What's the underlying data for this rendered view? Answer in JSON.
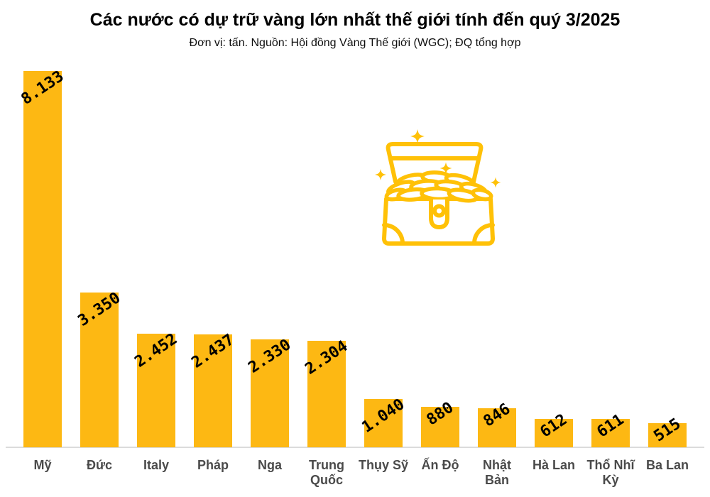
{
  "chart_data": {
    "type": "bar",
    "title": "Các nước có dự trữ vàng lớn nhất thế giới tính đến quý 3/2025",
    "subtitle": "Đơn vị: tấn. Nguồn: Hội đồng Vàng Thế giới (WGC); ĐQ tổng hợp",
    "unit": "tấn",
    "categories": [
      "Mỹ",
      "Đức",
      "Italy",
      "Pháp",
      "Nga",
      "Trung Quốc",
      "Thụy Sỹ",
      "Ấn Độ",
      "Nhật Bản",
      "Hà Lan",
      "Thổ Nhĩ Kỳ",
      "Ba Lan"
    ],
    "values": [
      8133,
      3350,
      2452,
      2437,
      2330,
      2304,
      1040,
      880,
      846,
      612,
      611,
      515
    ],
    "value_labels": [
      "8.133",
      "3.350",
      "2.452",
      "2.437",
      "2.330",
      "2.304",
      "1.040",
      "880",
      "846",
      "612",
      "611",
      "515"
    ],
    "ylim": [
      0,
      8133
    ],
    "grid": false,
    "legend": false,
    "bar_color": "#FDB813",
    "label_rotation_deg": -34
  },
  "icon": {
    "name": "treasure-chest-icon",
    "description": "open treasure chest full of gold coins with sparkles",
    "color": "#FFC107"
  },
  "colors": {
    "background": "#ffffff",
    "title_text": "#000000",
    "subtitle_text": "#0e0e0e",
    "value_label_text": "#000000",
    "category_text": "#4a4a4a",
    "baseline": "#dbdbdb"
  }
}
